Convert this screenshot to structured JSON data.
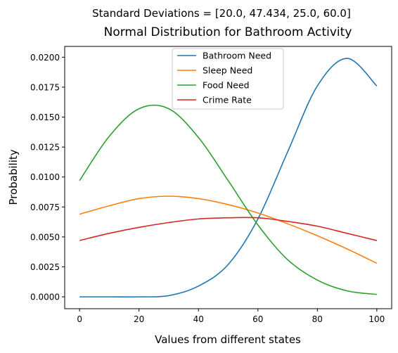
{
  "chart_data": {
    "type": "line",
    "suptitle": "Standard Deviations = [20.0, 47.434, 25.0, 60.0]",
    "title": "Normal Distribution for Bathroom Activity",
    "xlabel": "Values from different states",
    "ylabel": "Probability",
    "xlim": [
      -5,
      105
    ],
    "ylim": [
      -0.00099,
      0.0209
    ],
    "x_ticks": [
      0,
      20,
      40,
      60,
      80,
      100
    ],
    "y_ticks": [
      0.0,
      0.0025,
      0.005,
      0.0075,
      0.01,
      0.0125,
      0.015,
      0.0175,
      0.02
    ],
    "y_tick_labels": [
      "0.0000",
      "0.0025",
      "0.0050",
      "0.0075",
      "0.0100",
      "0.0125",
      "0.0150",
      "0.0175",
      "0.0200"
    ],
    "grid": false,
    "legend_position": "top-center",
    "series": [
      {
        "name": "Bathroom Need",
        "color": "#1f77b4",
        "x": [
          0,
          10,
          20,
          30,
          40,
          50,
          60,
          70,
          80,
          90,
          100
        ],
        "y": [
          0.0,
          0.0,
          0.0,
          0.0001,
          0.0009,
          0.0027,
          0.0065,
          0.0121,
          0.0176,
          0.0199,
          0.0176
        ]
      },
      {
        "name": "Sleep Need",
        "color": "#ff7f0e",
        "x": [
          0,
          10,
          20,
          30,
          40,
          50,
          60,
          70,
          80,
          90,
          100
        ],
        "y": [
          0.0069,
          0.0076,
          0.0082,
          0.0084,
          0.0082,
          0.0077,
          0.007,
          0.0061,
          0.0051,
          0.004,
          0.0028
        ]
      },
      {
        "name": "Food Need",
        "color": "#2ca02c",
        "x": [
          0,
          10,
          20,
          30,
          40,
          50,
          60,
          70,
          80,
          90,
          100
        ],
        "y": [
          0.0097,
          0.0134,
          0.0157,
          0.0157,
          0.0133,
          0.0097,
          0.006,
          0.0031,
          0.0014,
          0.0005,
          0.0002
        ]
      },
      {
        "name": "Crime Rate",
        "color": "#d62728",
        "x": [
          0,
          10,
          20,
          30,
          40,
          50,
          60,
          70,
          80,
          90,
          100
        ],
        "y": [
          0.0047,
          0.0053,
          0.0058,
          0.0062,
          0.0065,
          0.0066,
          0.0066,
          0.0063,
          0.0059,
          0.0053,
          0.0047
        ]
      }
    ]
  }
}
